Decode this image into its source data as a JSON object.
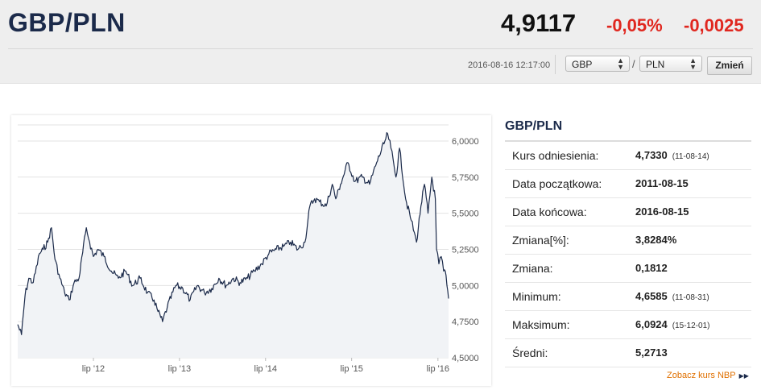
{
  "header": {
    "pair": "GBP/PLN",
    "rate": "4,9117",
    "change_pct": "-0,05%",
    "change_abs": "-0,0025",
    "timestamp": "2016-08-16 12:17:00",
    "from_currency": "GBP",
    "separator": "/",
    "to_currency": "PLN",
    "change_button": "Zmień"
  },
  "colors": {
    "negative": "#e0271f",
    "title": "#1b2a4a",
    "link": "#e07000",
    "series": "#1b2a4a"
  },
  "panel": {
    "title": "GBP/PLN",
    "rows": [
      {
        "label": "Kurs odniesienia:",
        "value": "4,7330",
        "date": "(11-08-14)"
      },
      {
        "label": "Data początkowa:",
        "value": "2011-08-15",
        "date": ""
      },
      {
        "label": "Data końcowa:",
        "value": "2016-08-15",
        "date": ""
      },
      {
        "label": "Zmiana[%]:",
        "value": "3,8284%",
        "date": ""
      },
      {
        "label": "Zmiana:",
        "value": "0,1812",
        "date": ""
      },
      {
        "label": "Minimum:",
        "value": "4,6585",
        "date": "(11-08-31)"
      },
      {
        "label": "Maksimum:",
        "value": "6,0924",
        "date": "(15-12-01)"
      },
      {
        "label": "Średni:",
        "value": "5,2713",
        "date": ""
      }
    ],
    "link": "Zobacz kurs NBP",
    "link_icon": "double-chevron-right-icon"
  },
  "chart_data": {
    "type": "area",
    "x_tick_labels": [
      "lip '12",
      "lip '13",
      "lip '14",
      "lip '15",
      "lip '16"
    ],
    "y_tick_labels": [
      "6,0000",
      "5,7500",
      "5,5000",
      "5,2500",
      "5,0000",
      "4,7500",
      "4,5000"
    ],
    "y_ticks": [
      6.0,
      5.75,
      5.5,
      5.25,
      5.0,
      4.75,
      4.5
    ],
    "ylim": [
      4.5,
      6.1
    ],
    "x_range": [
      "2011-08-15",
      "2016-08-15"
    ],
    "grid": true,
    "series": [
      {
        "points": [
          [
            "2011-08-15",
            4.73
          ],
          [
            "2011-08-31",
            4.66
          ],
          [
            "2011-09-15",
            4.93
          ],
          [
            "2011-10-01",
            5.05
          ],
          [
            "2011-10-20",
            5.02
          ],
          [
            "2011-11-15",
            5.22
          ],
          [
            "2011-12-01",
            5.25
          ],
          [
            "2011-12-20",
            5.3
          ],
          [
            "2012-01-05",
            5.4
          ],
          [
            "2012-01-20",
            5.18
          ],
          [
            "2012-02-10",
            5.05
          ],
          [
            "2012-03-01",
            4.95
          ],
          [
            "2012-03-20",
            4.9
          ],
          [
            "2012-04-10",
            5.02
          ],
          [
            "2012-05-01",
            5.05
          ],
          [
            "2012-06-01",
            5.4
          ],
          [
            "2012-06-15",
            5.3
          ],
          [
            "2012-07-01",
            5.2
          ],
          [
            "2012-07-20",
            5.25
          ],
          [
            "2012-08-15",
            5.2
          ],
          [
            "2012-09-15",
            5.1
          ],
          [
            "2012-10-15",
            5.05
          ],
          [
            "2012-11-15",
            5.1
          ],
          [
            "2012-12-15",
            5.0
          ],
          [
            "2013-01-15",
            5.05
          ],
          [
            "2013-02-15",
            4.95
          ],
          [
            "2013-03-15",
            4.9
          ],
          [
            "2013-04-01",
            4.82
          ],
          [
            "2013-04-20",
            4.75
          ],
          [
            "2013-05-10",
            4.85
          ],
          [
            "2013-06-15",
            5.0
          ],
          [
            "2013-07-15",
            4.98
          ],
          [
            "2013-08-15",
            4.9
          ],
          [
            "2013-09-15",
            5.0
          ],
          [
            "2013-10-15",
            4.95
          ],
          [
            "2013-11-15",
            4.98
          ],
          [
            "2013-12-15",
            5.05
          ],
          [
            "2014-01-15",
            5.0
          ],
          [
            "2014-02-15",
            5.05
          ],
          [
            "2014-03-15",
            5.02
          ],
          [
            "2014-04-15",
            5.05
          ],
          [
            "2014-05-15",
            5.1
          ],
          [
            "2014-06-15",
            5.15
          ],
          [
            "2014-07-15",
            5.22
          ],
          [
            "2014-08-15",
            5.25
          ],
          [
            "2014-09-15",
            5.27
          ],
          [
            "2014-10-15",
            5.3
          ],
          [
            "2014-11-15",
            5.25
          ],
          [
            "2014-12-15",
            5.3
          ],
          [
            "2015-01-05",
            5.55
          ],
          [
            "2015-01-25",
            5.6
          ],
          [
            "2015-02-15",
            5.58
          ],
          [
            "2015-03-15",
            5.55
          ],
          [
            "2015-04-10",
            5.7
          ],
          [
            "2015-04-25",
            5.6
          ],
          [
            "2015-05-15",
            5.7
          ],
          [
            "2015-06-15",
            5.85
          ],
          [
            "2015-07-15",
            5.72
          ],
          [
            "2015-08-15",
            5.75
          ],
          [
            "2015-09-15",
            5.7
          ],
          [
            "2015-10-15",
            5.85
          ],
          [
            "2015-11-15",
            5.98
          ],
          [
            "2015-12-01",
            6.05
          ],
          [
            "2015-12-15",
            5.95
          ],
          [
            "2016-01-05",
            5.75
          ],
          [
            "2016-01-20",
            5.95
          ],
          [
            "2016-02-15",
            5.6
          ],
          [
            "2016-03-10",
            5.45
          ],
          [
            "2016-04-01",
            5.3
          ],
          [
            "2016-04-20",
            5.55
          ],
          [
            "2016-05-05",
            5.7
          ],
          [
            "2016-05-20",
            5.5
          ],
          [
            "2016-06-05",
            5.75
          ],
          [
            "2016-06-20",
            5.6
          ],
          [
            "2016-06-25",
            5.25
          ],
          [
            "2016-07-05",
            5.15
          ],
          [
            "2016-07-15",
            5.2
          ],
          [
            "2016-07-25",
            5.1
          ],
          [
            "2016-08-01",
            5.1
          ],
          [
            "2016-08-08",
            5.0
          ],
          [
            "2016-08-15",
            4.91
          ]
        ]
      }
    ]
  }
}
